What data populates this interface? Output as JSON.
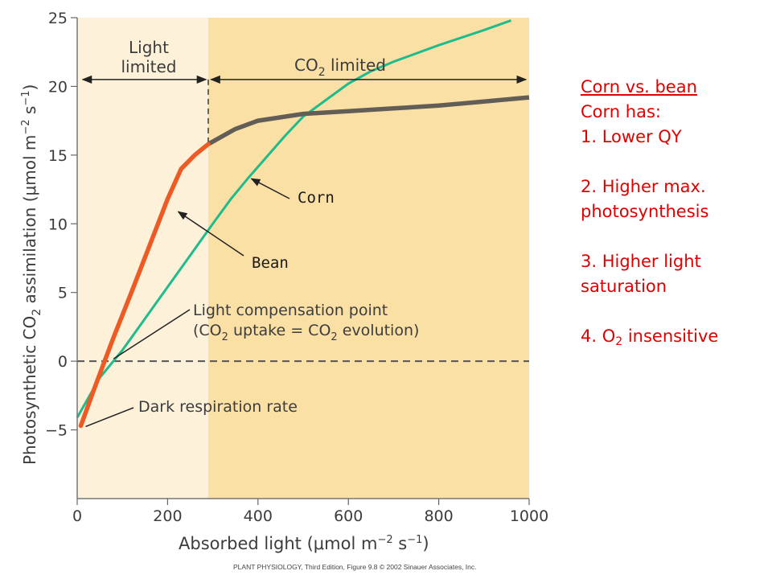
{
  "chart_data": {
    "type": "line",
    "xlabel": {
      "pre": "Absorbed light (",
      "mu": "μ",
      "mid": "mol m",
      "exp1": "−2",
      "mid2": " s",
      "exp2": "−1",
      "post": ")"
    },
    "ylabel": {
      "pre": "Photosynthetic CO",
      "sub": "2",
      "mid": " assimilation (",
      "mu": "μ",
      "mid2": "mol m",
      "exp1": "−2",
      "mid3": " s",
      "exp2": "−1",
      "post": ")"
    },
    "xlim": [
      0,
      1000
    ],
    "ylim": [
      -10,
      25
    ],
    "xticks": [
      0,
      200,
      400,
      600,
      800,
      1000
    ],
    "yticks": [
      25,
      20,
      15,
      10,
      5,
      0,
      -5
    ],
    "ytick_labels": [
      "25",
      "20",
      "15",
      "10",
      "5",
      "0",
      "−5"
    ],
    "regions": [
      {
        "label_lines": [
          "Light",
          "limited"
        ],
        "x_range": [
          0,
          290
        ],
        "color": "#fdf1da"
      },
      {
        "label_pre": "CO",
        "label_sub": "2",
        "label_post": " limited",
        "x_range": [
          290,
          1000
        ],
        "color": "#fbe0a6"
      }
    ],
    "series": [
      {
        "name": "Bean",
        "color": "#ee5a24",
        "color_after_saturation": "#625d56",
        "x": [
          8,
          40,
          80,
          120,
          160,
          200,
          230,
          260,
          290,
          350,
          400,
          500,
          600,
          700,
          800,
          900,
          1000
        ],
        "y": [
          -4.7,
          -1.8,
          1.7,
          5.0,
          8.4,
          11.8,
          14.0,
          15.0,
          15.8,
          16.9,
          17.5,
          18.0,
          18.2,
          18.4,
          18.6,
          18.9,
          19.2
        ],
        "saturation_x": 290
      },
      {
        "name": "Corn",
        "color": "#1ebb8d",
        "x": [
          0,
          50,
          100,
          150,
          200,
          250,
          300,
          340,
          380,
          420,
          460,
          500,
          550,
          600,
          650,
          700,
          800,
          900,
          960
        ],
        "y": [
          -4.1,
          -1.2,
          0.8,
          3.1,
          5.4,
          7.7,
          10.0,
          11.8,
          13.4,
          14.9,
          16.4,
          17.8,
          19.0,
          20.2,
          21.1,
          21.8,
          23.0,
          24.1,
          24.8
        ]
      }
    ],
    "reference_lines": [
      {
        "type": "horizontal",
        "y": 0,
        "style": "dashed"
      },
      {
        "type": "vertical",
        "x": 290,
        "y_range": [
          15.8,
          20.5
        ],
        "style": "dashed"
      }
    ],
    "annotations": [
      {
        "text": "Corn",
        "target": [
          380,
          13.4
        ]
      },
      {
        "text": "Bean",
        "target": [
          220,
          11.0
        ]
      },
      {
        "lines": [
          "Light compensation point"
        ],
        "line2": {
          "pre": "(CO",
          "sub": "2",
          "mid": " uptake = CO",
          "sub2": "2",
          "post": " evolution)"
        },
        "target": [
          70,
          0
        ]
      },
      {
        "text": "Dark respiration rate",
        "target": [
          8,
          -4.7
        ]
      }
    ],
    "credit": {
      "book": "PLANT PHYSIOLOGY",
      "rest": ", Third Edition, Figure 9.8  © 2002 Sinauer Associates, Inc."
    }
  },
  "notes": {
    "title": "Corn vs. bean",
    "intro": "Corn has:",
    "item1": "1.  Lower QY",
    "item2a": "2. Higher max.",
    "item2b": "photosynthesis",
    "item3a": "3. Higher light",
    "item3b": "saturation",
    "item4_pre": "4. O",
    "item4_sub": "2",
    "item4_post": " insensitive"
  }
}
